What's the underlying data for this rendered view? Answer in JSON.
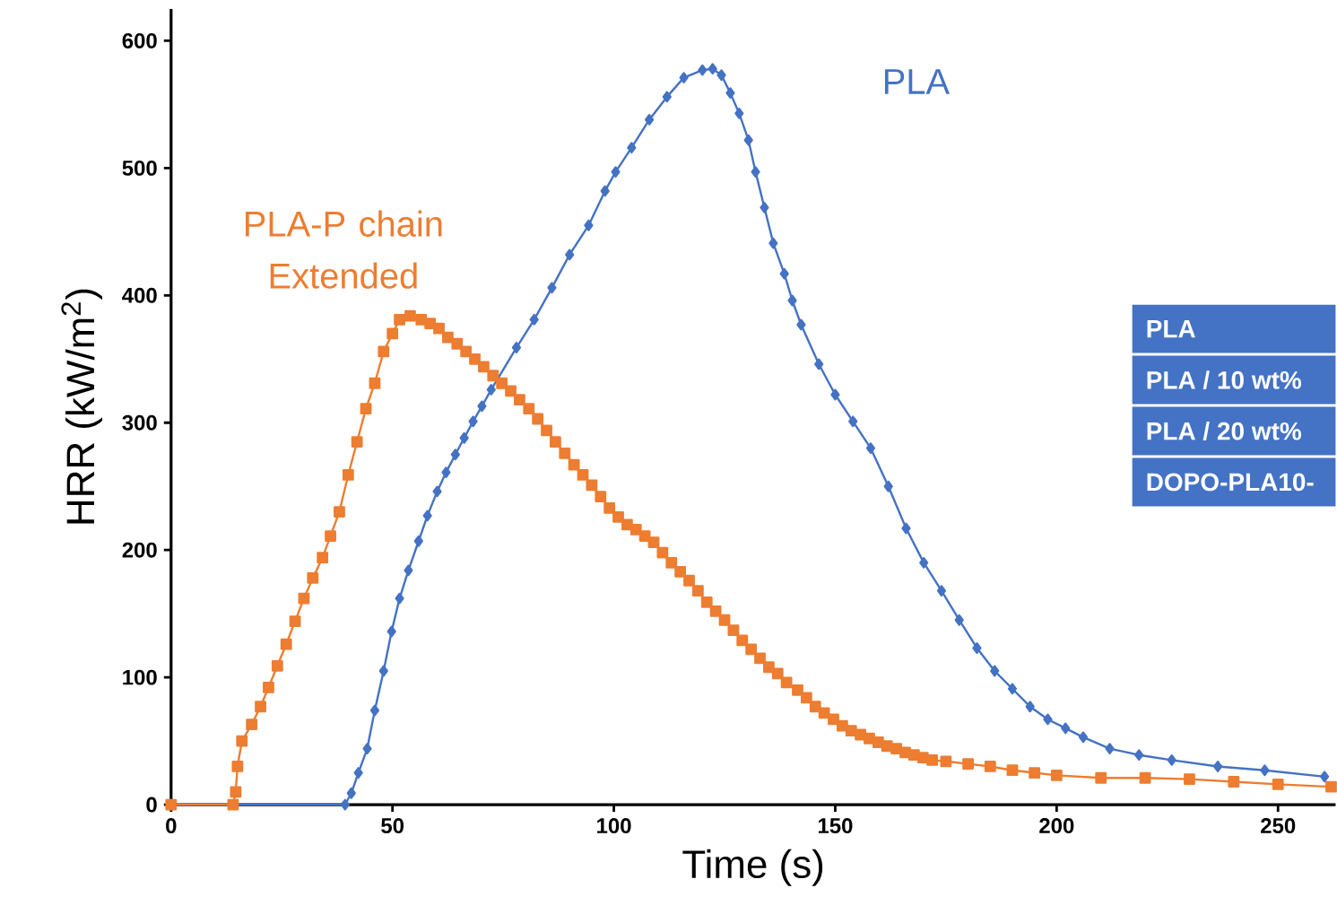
{
  "chart_data": {
    "type": "line",
    "xlabel": "Time (s)",
    "ylabel": "HRR (kW/m$^{2}$)",
    "xlim": [
      0,
      263
    ],
    "ylim": [
      0,
      625
    ],
    "xticks": [
      0,
      50,
      100,
      150,
      200,
      250
    ],
    "yticks": [
      0,
      100,
      200,
      300,
      400,
      500,
      600
    ],
    "grid": false,
    "line_style": "solid",
    "annotations": [
      "PLA",
      "PLA / 10 wt%",
      "PLA / 20 wt%",
      "DOPO-PLA10-"
    ],
    "series": [
      {
        "name": "PLA",
        "color": "#4472c4",
        "marker": "diamond",
        "x": [
          0,
          39.3,
          40.7,
          42.3,
          44.3,
          46,
          48,
          49.8,
          51.6,
          53.6,
          55.9,
          57.9,
          60.1,
          62.1,
          64.2,
          66.2,
          68.2,
          70.2,
          72.3,
          78,
          82,
          86,
          90,
          94.3,
          98,
          100.4,
          104,
          108,
          112,
          115.8,
          120,
          122.3,
          124.3,
          126.3,
          128.3,
          130.4,
          132,
          134,
          136,
          138.5,
          140.3,
          142.3,
          146.3,
          150,
          154,
          158,
          162,
          166,
          170,
          174,
          178,
          182,
          186,
          190,
          194,
          198,
          202,
          206,
          212,
          218.6,
          226,
          236.4,
          247,
          260.5
        ],
        "values": [
          0,
          0,
          9,
          25,
          44,
          74,
          105,
          136,
          162,
          184,
          207,
          227,
          246,
          261,
          275,
          288,
          301,
          313,
          326,
          359,
          381,
          406,
          432,
          455,
          482,
          497,
          516,
          538,
          556,
          571,
          577,
          578,
          573,
          559,
          543,
          522,
          497,
          469,
          441,
          417,
          396,
          377,
          346,
          322,
          301,
          280,
          250,
          217,
          190,
          168,
          145,
          123,
          105,
          91,
          77,
          67,
          60,
          53,
          44,
          39,
          35,
          30,
          27,
          22
        ]
      },
      {
        "name": "PLA-P chain Extended",
        "color": "#ed7d31",
        "marker": "square",
        "x": [
          0,
          14,
          14.6,
          15,
          16,
          18.2,
          20.2,
          22,
          24,
          26,
          28,
          30,
          32,
          34.2,
          36,
          38,
          40,
          42,
          44,
          46,
          48,
          50,
          51.6,
          54,
          56.5,
          58.5,
          60.5,
          62.5,
          64.6,
          66.6,
          68.6,
          70.6,
          72.7,
          74.7,
          76.7,
          78.7,
          80.8,
          82.8,
          84.8,
          86.8,
          88.9,
          91,
          93,
          95,
          97,
          99,
          101,
          103,
          105,
          107,
          109,
          111,
          113,
          115,
          117,
          119,
          121,
          123,
          125,
          127,
          129,
          131,
          133,
          135,
          137,
          139,
          141.5,
          143.5,
          145.5,
          147.5,
          149.6,
          151.6,
          153.6,
          155.7,
          157.7,
          159.7,
          161.7,
          163.8,
          165.8,
          167.8,
          169.8,
          171.9,
          175,
          180,
          185,
          190,
          195,
          200,
          210,
          220,
          230,
          240,
          250,
          262
        ],
        "values": [
          0,
          0,
          10,
          30,
          50,
          63,
          77,
          92,
          109,
          126,
          144,
          162,
          178,
          194,
          211,
          230,
          259,
          285,
          311,
          331,
          356,
          370,
          381,
          384,
          381,
          378,
          374,
          367,
          362,
          356,
          350,
          344,
          337,
          331,
          325,
          318,
          311,
          303,
          294,
          285,
          276,
          267,
          259,
          251,
          242,
          233,
          226,
          220,
          216,
          211,
          206,
          198,
          190,
          183,
          176,
          168,
          159,
          152,
          145,
          137,
          129,
          122,
          115,
          108,
          103,
          96,
          90,
          84,
          77,
          72,
          67,
          62,
          58,
          55,
          52,
          49,
          46,
          44,
          41,
          39,
          37,
          35,
          34,
          32,
          30,
          27,
          25,
          23,
          21,
          21,
          20,
          18,
          16,
          14
        ]
      }
    ]
  }
}
